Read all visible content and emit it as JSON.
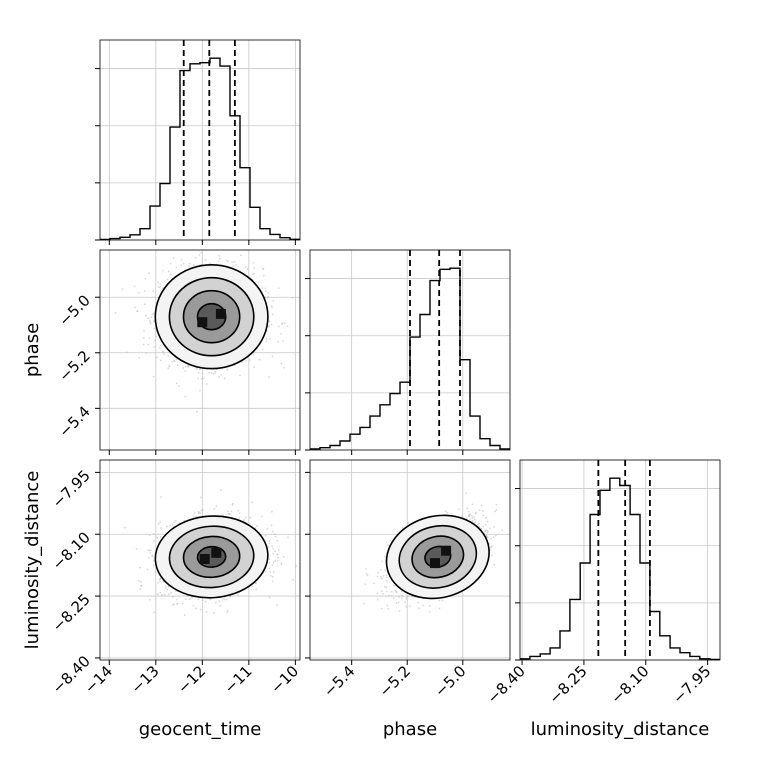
{
  "chart_data": {
    "type": "corner",
    "parameters": [
      "geocent_time",
      "phase",
      "luminosity_distance"
    ],
    "axis_labels": {
      "geocent_time": "geocent_time",
      "phase": "phase",
      "luminosity_distance": "luminosity_distance"
    },
    "ranges": {
      "geocent_time": [
        -14.2,
        -9.9
      ],
      "phase": [
        -5.55,
        -4.83
      ],
      "luminosity_distance": [
        -8.405,
        -7.92
      ]
    },
    "ticks": {
      "geocent_time": {
        "values": [
          -14,
          -13,
          -12,
          -11,
          -10
        ],
        "labels": [
          "−14",
          "−13",
          "−12",
          "−11",
          "−10"
        ]
      },
      "phase": {
        "values": [
          -5.4,
          -5.2,
          -5.0
        ],
        "labels": [
          "−5.4",
          "−5.2",
          "−5.0"
        ]
      },
      "luminosity_distance": {
        "values": [
          -8.4,
          -8.25,
          -8.1,
          -7.95
        ],
        "labels": [
          "−8.40",
          "−8.25",
          "−8.10",
          "−7.95"
        ]
      }
    },
    "histograms": {
      "geocent_time": {
        "bin_edges": [
          -14.2,
          -13.985,
          -13.77,
          -13.555,
          -13.34,
          -13.125,
          -12.91,
          -12.695,
          -12.48,
          -12.265,
          -12.05,
          -11.835,
          -11.62,
          -11.405,
          -11.19,
          -10.975,
          -10.76,
          -10.545,
          -10.33,
          -10.115,
          -9.9
        ],
        "counts": [
          0.2,
          0.6,
          1.2,
          2.3,
          5.0,
          15.0,
          25.0,
          50.0,
          75.0,
          78.0,
          78.5,
          80.5,
          77.0,
          55.0,
          32.0,
          14.5,
          5.0,
          2.5,
          1.0,
          0.3
        ],
        "quantiles": [
          -12.4,
          -11.85,
          -11.3
        ]
      },
      "phase": {
        "bin_edges": [
          -5.55,
          -5.514,
          -5.478,
          -5.442,
          -5.406,
          -5.37,
          -5.334,
          -5.298,
          -5.262,
          -5.226,
          -5.19,
          -5.154,
          -5.118,
          -5.082,
          -5.046,
          -5.01,
          -4.974,
          -4.938,
          -4.902,
          -4.866,
          -4.83
        ],
        "counts": [
          0.5,
          1.0,
          2.0,
          4.0,
          7.0,
          10.0,
          15.0,
          20.0,
          25.0,
          30.0,
          50.0,
          60.0,
          75.0,
          80.0,
          80.5,
          40.0,
          15.0,
          5.0,
          2.0,
          0.5
        ],
        "quantiles": [
          -5.19,
          -5.085,
          -5.01
        ]
      },
      "luminosity_distance": {
        "bin_edges": [
          -8.405,
          -8.381,
          -8.356,
          -8.332,
          -8.308,
          -8.284,
          -8.259,
          -8.235,
          -8.211,
          -8.187,
          -8.163,
          -8.138,
          -8.114,
          -8.09,
          -8.066,
          -8.041,
          -8.017,
          -7.993,
          -7.969,
          -7.944,
          -7.92
        ],
        "counts": [
          0.5,
          1.5,
          2.5,
          5.0,
          12.0,
          25.0,
          40.0,
          60.0,
          70.0,
          75.0,
          72.0,
          60.0,
          40.0,
          20.0,
          10.0,
          5.0,
          3.0,
          1.5,
          0.5,
          0.2
        ],
        "quantiles": [
          -8.215,
          -8.15,
          -8.09
        ]
      }
    },
    "contours_2d": [
      {
        "x": "geocent_time",
        "y": "phase",
        "center": [
          -11.8,
          -5.07
        ],
        "spread": [
          0.55,
          0.085
        ],
        "correlation": 0.0,
        "peak_density": [
          [
            -12.0,
            -5.09
          ],
          [
            -11.6,
            -5.06
          ]
        ],
        "levels": [
          "0.5",
          "1.0",
          "1.5",
          "2.0"
        ]
      },
      {
        "x": "geocent_time",
        "y": "luminosity_distance",
        "center": [
          -11.8,
          -8.155
        ],
        "spread": [
          0.55,
          0.045
        ],
        "correlation": 0.15,
        "peak_density": [
          [
            -11.95,
            -8.16
          ],
          [
            -11.7,
            -8.145
          ]
        ],
        "levels": [
          "0.5",
          "1.0",
          "1.5",
          "2.0"
        ]
      },
      {
        "x": "phase",
        "y": "luminosity_distance",
        "center": [
          -5.09,
          -8.155
        ],
        "spread": [
          0.085,
          0.045
        ],
        "correlation": 0.55,
        "peak_density": [
          [
            -5.1,
            -8.17
          ],
          [
            -5.06,
            -8.14
          ]
        ],
        "levels": [
          "0.5",
          "1.0",
          "1.5",
          "2.0"
        ]
      }
    ],
    "grid": true,
    "quantile_line_style": "dashed"
  }
}
